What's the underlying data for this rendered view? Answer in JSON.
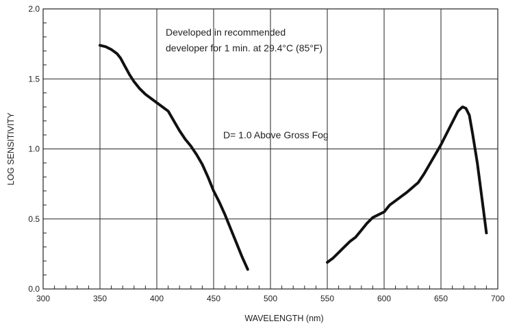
{
  "chart_data": {
    "type": "line",
    "xlabel": "WAVELENGTH (nm)",
    "ylabel": "LOG SENSITIVITY",
    "xlim": [
      300,
      700
    ],
    "ylim": [
      0.0,
      2.0
    ],
    "x_ticks": [
      "300",
      "350",
      "400",
      "450",
      "500",
      "550",
      "600",
      "650",
      "700"
    ],
    "y_ticks": [
      "0.0",
      "0.5",
      "1.0",
      "1.5",
      "2.0"
    ],
    "grid": true,
    "annotations": [
      {
        "lines": [
          "Developed in recommended",
          "developer for 1 min. at 29.4°C (85°F)"
        ]
      },
      {
        "lines": [
          "D= 1.0 Above Gross Fog"
        ]
      }
    ],
    "series": [
      {
        "segments": [
          {
            "x": [
              350,
              355,
              360,
              365,
              368,
              372,
              376,
              380,
              385,
              390,
              395,
              400,
              405,
              410,
              415,
              420,
              425,
              430,
              435,
              440,
              445,
              450,
              455,
              460,
              465,
              470,
              475,
              480
            ],
            "y": [
              1.74,
              1.73,
              1.71,
              1.68,
              1.65,
              1.59,
              1.53,
              1.48,
              1.43,
              1.39,
              1.36,
              1.33,
              1.3,
              1.27,
              1.2,
              1.13,
              1.07,
              1.02,
              0.96,
              0.89,
              0.8,
              0.7,
              0.62,
              0.53,
              0.43,
              0.33,
              0.23,
              0.14
            ]
          },
          {
            "x": [
              550,
              555,
              560,
              565,
              570,
              575,
              580,
              585,
              590,
              595,
              600,
              605,
              610,
              620,
              630,
              635,
              640,
              645,
              650,
              655,
              660,
              665,
              669,
              672,
              675,
              678,
              682,
              686,
              690
            ],
            "y": [
              0.19,
              0.22,
              0.26,
              0.3,
              0.34,
              0.37,
              0.42,
              0.47,
              0.51,
              0.53,
              0.55,
              0.6,
              0.63,
              0.69,
              0.76,
              0.82,
              0.89,
              0.96,
              1.03,
              1.11,
              1.19,
              1.27,
              1.3,
              1.29,
              1.24,
              1.1,
              0.9,
              0.65,
              0.4
            ]
          }
        ]
      }
    ]
  }
}
